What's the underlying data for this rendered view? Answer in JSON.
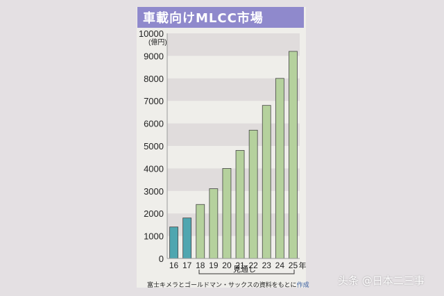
{
  "chart_data": {
    "type": "bar",
    "title": "車載向けMLCC市場",
    "unit_label": "(億円)",
    "categories": [
      "16",
      "17",
      "18",
      "19",
      "20",
      "21",
      "22",
      "23",
      "24",
      "25"
    ],
    "x_suffix": "年",
    "values": [
      1400,
      1800,
      2400,
      3100,
      4000,
      4800,
      5700,
      6800,
      8000,
      9200
    ],
    "actual_count": 2,
    "forecast_label": "見通し",
    "ylim": [
      0,
      10000
    ],
    "yticks": [
      0,
      1000,
      2000,
      3000,
      4000,
      5000,
      6000,
      7000,
      8000,
      9000,
      10000
    ],
    "colors": {
      "actual": "#4fa6b0",
      "forecast": "#b5d19d",
      "band": "#e0dcdc",
      "title_bg": "#8f89cc"
    }
  },
  "source": {
    "text": "富士キメラとゴールドマン・サックスの資料をもとに",
    "suffix": "作成"
  },
  "watermark": "头条 @日本二三事"
}
